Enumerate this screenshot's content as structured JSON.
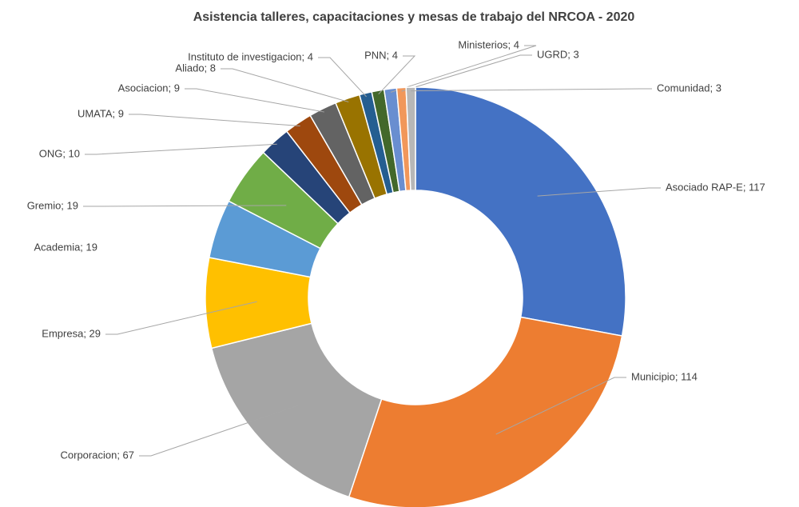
{
  "chart_data": {
    "type": "donut",
    "title": "Asistencia talleres, capacitaciones y mesas de trabajo del NRCOA - 2020",
    "values": [
      117,
      114,
      67,
      29,
      19,
      19,
      10,
      9,
      9,
      8,
      4,
      4,
      4,
      3,
      3
    ],
    "value_labels": [
      "Asociado RAP-E; 117",
      "Municipio; 114",
      "Corporacion; 67",
      "Empresa; 29",
      "Academia; 19",
      "Gremio; 19",
      "ONG; 10",
      "UMATA; 9",
      "Asociacion; 9",
      "Aliado; 8",
      "Instituto de investigacion; 4",
      "PNN; 4",
      "Ministerios; 4",
      "UGRD; 3",
      "Comunidad; 3"
    ],
    "colors": [
      "#4472c4",
      "#ed7d31",
      "#a5a5a5",
      "#ffc000",
      "#5b9bd5",
      "#70ad47",
      "#264478",
      "#9e480e",
      "#636363",
      "#997300",
      "#255e91",
      "#43682b",
      "#698ed0",
      "#f1975a",
      "#b7b7b7"
    ]
  }
}
